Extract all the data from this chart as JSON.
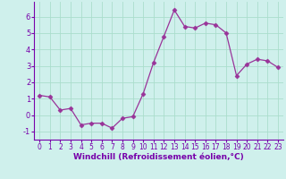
{
  "x": [
    0,
    1,
    2,
    3,
    4,
    5,
    6,
    7,
    8,
    9,
    10,
    11,
    12,
    13,
    14,
    15,
    16,
    17,
    18,
    19,
    20,
    21,
    22,
    23
  ],
  "y": [
    1.2,
    1.1,
    0.3,
    0.4,
    -0.6,
    -0.5,
    -0.5,
    -0.8,
    -0.2,
    -0.1,
    1.3,
    3.2,
    4.8,
    6.4,
    5.4,
    5.3,
    5.6,
    5.5,
    5.0,
    2.4,
    3.1,
    3.4,
    3.3,
    2.9
  ],
  "line_color": "#993399",
  "marker": "D",
  "marker_size": 2.5,
  "bg_color": "#cff0ec",
  "grid_color": "#aaddcc",
  "xlabel": "Windchill (Refroidissement éolien,°C)",
  "xlabel_color": "#7700aa",
  "tick_color": "#7700aa",
  "axis_color": "#7700aa",
  "ylim": [
    -1.5,
    6.9
  ],
  "xlim": [
    -0.5,
    23.5
  ],
  "yticks": [
    -1,
    0,
    1,
    2,
    3,
    4,
    5,
    6
  ],
  "xticks": [
    0,
    1,
    2,
    3,
    4,
    5,
    6,
    7,
    8,
    9,
    10,
    11,
    12,
    13,
    14,
    15,
    16,
    17,
    18,
    19,
    20,
    21,
    22,
    23
  ],
  "tick_fontsize": 5.5,
  "xlabel_fontsize": 6.5
}
